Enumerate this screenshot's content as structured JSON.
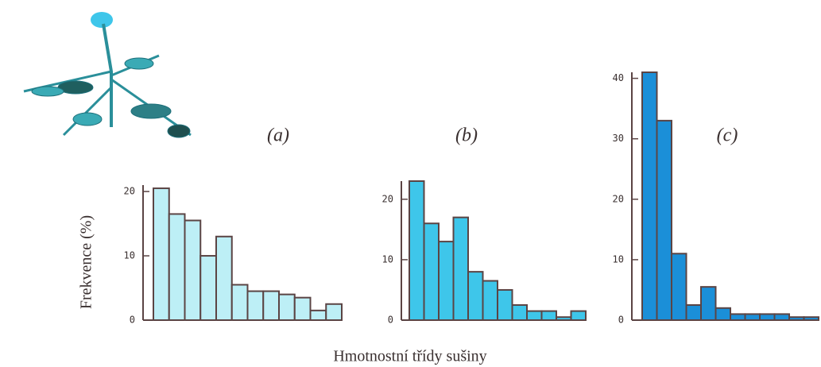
{
  "chart_data": [
    {
      "type": "bar",
      "title": "(a)",
      "ylabel": "Frekvence (%)",
      "categories": [
        null,
        null,
        null,
        null,
        null,
        null,
        null,
        null,
        null,
        null,
        null,
        null
      ],
      "values": [
        20.5,
        16.5,
        15.5,
        10,
        13,
        5.5,
        4.5,
        4.5,
        4,
        3.5,
        1.5,
        2.5
      ],
      "color": "#bdeff6",
      "ylim": [
        0,
        21
      ],
      "yticks": [
        0,
        10,
        20
      ]
    },
    {
      "type": "bar",
      "title": "(b)",
      "xlabel": "Hmotnostní třídy sušiny",
      "categories": [
        null,
        null,
        null,
        null,
        null,
        null,
        null,
        null,
        null,
        null,
        null,
        null
      ],
      "values": [
        23,
        16,
        13,
        17,
        8,
        6.5,
        5,
        2.5,
        1.5,
        1.5,
        0.5,
        1.5
      ],
      "color": "#3ec6ea",
      "ylim": [
        0,
        23
      ],
      "yticks": [
        0,
        10,
        20
      ]
    },
    {
      "type": "bar",
      "title": "(c)",
      "categories": [
        null,
        null,
        null,
        null,
        null,
        null,
        null,
        null,
        null,
        null,
        null,
        null
      ],
      "values": [
        41,
        33,
        11,
        2.5,
        5.5,
        2,
        1,
        1,
        1,
        1,
        0.5,
        0.5
      ],
      "color": "#1b8fd8",
      "ylim": [
        0,
        41
      ],
      "yticks": [
        0,
        10,
        20,
        30,
        40
      ]
    }
  ]
}
